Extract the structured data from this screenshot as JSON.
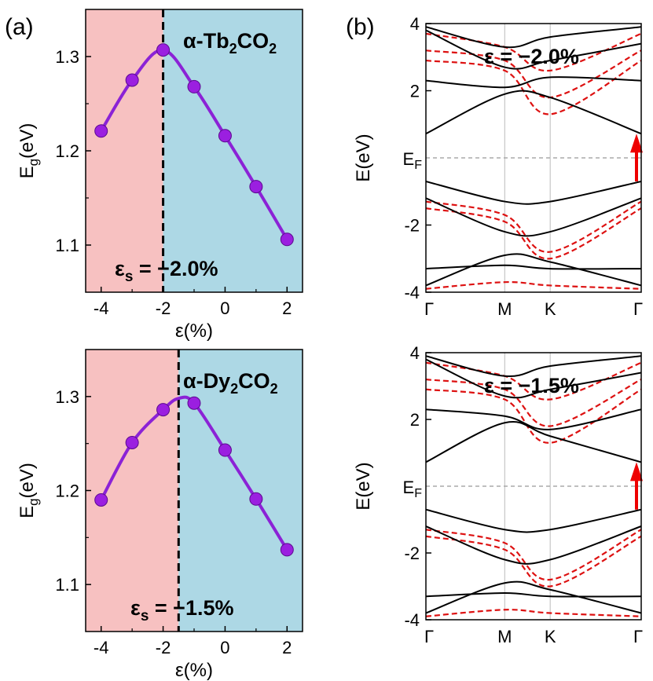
{
  "panels": {
    "a": "(a)",
    "b": "(b)"
  },
  "colors": {
    "left_region": "#f7c1c1",
    "right_region": "#add8e5",
    "curve": "#8b22d6",
    "marker": "#9b1fe0",
    "band_solid": "#000000",
    "band_dashed": "#dd1111",
    "arrow": "#ee0000",
    "fermi": "#aaaaaa"
  },
  "chart_data": [
    {
      "type": "line",
      "panel": "(a) top",
      "material": "α-Tb2CO2",
      "material_prefix": "α-Tb",
      "material_sub1": "2",
      "material_mid": "CO",
      "material_sub2": "2",
      "x": [
        -4,
        -3,
        -2,
        -1,
        0,
        1,
        2
      ],
      "y": [
        1.221,
        1.275,
        1.307,
        1.268,
        1.216,
        1.162,
        1.106
      ],
      "xlabel": "ε(%)",
      "ylabel_main": "E",
      "ylabel_sub": "g",
      "ylabel_unit": "(eV)",
      "xlim": [
        -4.5,
        2.5
      ],
      "ylim": [
        1.05,
        1.35
      ],
      "xticks": [
        -4,
        -2,
        0,
        2
      ],
      "xtick_labels": [
        "-4",
        "-2",
        "0",
        "2"
      ],
      "yticks": [
        1.1,
        1.2,
        1.3
      ],
      "ytick_labels": [
        "1.1",
        "1.2",
        "1.3"
      ],
      "divider_x": -2.0,
      "strain_label_main": "ε",
      "strain_label_sub": "s",
      "strain_label_value": " = −2.0%"
    },
    {
      "type": "line",
      "panel": "(a) bottom",
      "material": "α-Dy2CO2",
      "material_prefix": "α-Dy",
      "material_sub1": "2",
      "material_mid": "CO",
      "material_sub2": "2",
      "x": [
        -4,
        -3,
        -2,
        -1.5,
        -1,
        0,
        1,
        2
      ],
      "y": [
        1.19,
        1.251,
        1.286,
        1.298,
        1.293,
        1.243,
        1.191,
        1.137
      ],
      "xlabel": "ε(%)",
      "ylabel_main": "E",
      "ylabel_sub": "g",
      "ylabel_unit": "(eV)",
      "xlim": [
        -4.5,
        2.5
      ],
      "ylim": [
        1.05,
        1.35
      ],
      "xticks": [
        -4,
        -2,
        0,
        2
      ],
      "xtick_labels": [
        "-4",
        "-2",
        "0",
        "2"
      ],
      "yticks": [
        1.1,
        1.2,
        1.3
      ],
      "ytick_labels": [
        "1.1",
        "1.2",
        "1.3"
      ],
      "divider_x": -1.5,
      "strain_label_main": "ε",
      "strain_label_sub": "s",
      "strain_label_value": " = −1.5%"
    },
    {
      "type": "line",
      "panel": "(b) top",
      "strain_label": "ε = −2.0%",
      "ylabel_main": "E(eV)",
      "fermi_main": "E",
      "fermi_sub": "F",
      "ylim": [
        -4,
        4
      ],
      "yticks": [
        -4,
        -2,
        2,
        4
      ],
      "ytick_labels": [
        "-4",
        "-2",
        "2",
        "4"
      ],
      "kpoints": [
        0,
        1,
        1.577,
        2.732
      ],
      "kpoint_labels": [
        "Γ",
        "M",
        "K",
        "Γ"
      ],
      "gap_arrow_from": -0.7,
      "gap_arrow_to": 0.72,
      "bands_solid": [
        [
          -0.7,
          -1.3,
          -1.3,
          -0.7
        ],
        [
          -1.2,
          -2.2,
          -2.2,
          -1.2
        ],
        [
          0.72,
          1.9,
          1.8,
          0.72
        ],
        [
          2.3,
          2.1,
          2.4,
          2.3
        ],
        [
          -3.3,
          -3.2,
          -3.3,
          -3.3
        ],
        [
          -3.8,
          -2.9,
          -3.1,
          -3.8
        ],
        [
          3.8,
          2.7,
          2.9,
          3.4
        ],
        [
          3.9,
          3.3,
          3.6,
          3.9
        ]
      ],
      "bands_dashed": [
        [
          -1.3,
          -1.7,
          -2.8,
          -1.3
        ],
        [
          -1.5,
          -1.9,
          -3.0,
          -1.5
        ],
        [
          2.9,
          2.6,
          1.3,
          2.9
        ],
        [
          3.2,
          2.9,
          1.8,
          3.2
        ],
        [
          3.7,
          3.3,
          2.6,
          3.7
        ],
        [
          -3.9,
          -3.7,
          -3.8,
          -3.9
        ]
      ]
    },
    {
      "type": "line",
      "panel": "(b) bottom",
      "strain_label": "ε = −1.5%",
      "ylabel_main": "E(eV)",
      "fermi_main": "E",
      "fermi_sub": "F",
      "ylim": [
        -4,
        4
      ],
      "yticks": [
        -4,
        -2,
        2,
        4
      ],
      "ytick_labels": [
        "-4",
        "-2",
        "2",
        "4"
      ],
      "kpoints": [
        0,
        1,
        1.577,
        2.732
      ],
      "kpoint_labels": [
        "Γ",
        "M",
        "K",
        "Γ"
      ],
      "gap_arrow_from": -0.7,
      "gap_arrow_to": 0.72,
      "bands_solid": [
        [
          -0.7,
          -1.3,
          -1.3,
          -0.7
        ],
        [
          -1.2,
          -2.2,
          -2.2,
          -1.2
        ],
        [
          0.72,
          1.9,
          1.5,
          0.72
        ],
        [
          2.3,
          2.1,
          1.7,
          2.3
        ],
        [
          -3.3,
          -3.2,
          -3.3,
          -3.3
        ],
        [
          -3.8,
          -2.9,
          -3.1,
          -3.8
        ],
        [
          3.8,
          2.7,
          2.9,
          3.4
        ],
        [
          3.9,
          3.3,
          3.6,
          3.9
        ]
      ],
      "bands_dashed": [
        [
          -1.3,
          -1.7,
          -2.8,
          -1.3
        ],
        [
          -1.5,
          -1.9,
          -3.0,
          -1.5
        ],
        [
          2.9,
          2.6,
          1.3,
          2.9
        ],
        [
          3.2,
          2.9,
          1.8,
          3.2
        ],
        [
          3.7,
          3.3,
          2.6,
          3.7
        ],
        [
          -3.9,
          -3.7,
          -3.8,
          -3.9
        ]
      ]
    }
  ]
}
